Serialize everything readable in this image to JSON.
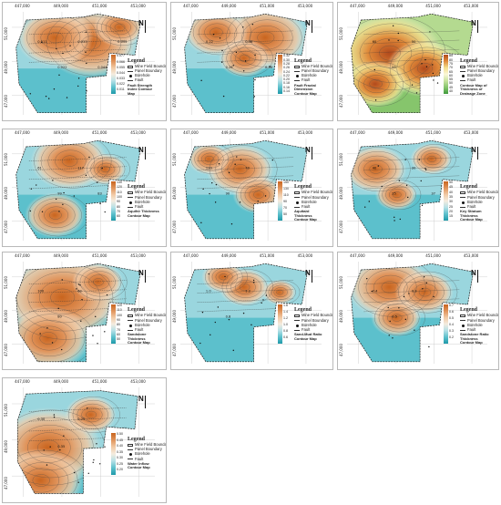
{
  "coord_labels": {
    "x": [
      "447,000",
      "449,000",
      "451,000",
      "453,000"
    ],
    "y": [
      "51,000",
      "49,000",
      "47,000"
    ]
  },
  "north_symbol": "N",
  "legend": {
    "title": "Legend",
    "items": [
      "Mine Field Boundary",
      "Panel Boundary",
      "Borehole",
      "Fault"
    ]
  },
  "palettes": {
    "orange_teal": [
      "#c9651f",
      "#e0935a",
      "#f1c9a4",
      "#f4ecdf",
      "#b5e0e6",
      "#5cc0cc",
      "#1f9aaa"
    ],
    "green_yellow": [
      "#b24a1c",
      "#e08a3a",
      "#f3df8e",
      "#fbf8d8",
      "#c8e3a0",
      "#86c56c",
      "#3f9a3c"
    ]
  },
  "panels": [
    {
      "map_title": "Fault Strength Index Contour Map",
      "palette": "orange_teal",
      "colorbar_ticks": [
        "0.077",
        "0.066",
        "0.055",
        "0.044",
        "0.033",
        "0.022",
        "0.011"
      ],
      "labels": [
        "0.011",
        "0.022",
        "0.033",
        "0.044",
        "0.055"
      ]
    },
    {
      "map_title": "Fault Fractal Dimension Contour Map",
      "palette": "orange_teal",
      "colorbar_ticks": [
        "0.32",
        "0.30",
        "0.28",
        "0.26",
        "0.24",
        "0.22",
        "0.20",
        "0.18",
        "0.16",
        "0.14"
      ],
      "labels": [
        "0.22",
        "0.26",
        "0.46",
        "0.30"
      ]
    },
    {
      "map_title": "Contour Map of Thickness of Drainage Zone",
      "palette": "green_yellow",
      "colorbar_ticks": [
        "85",
        "80",
        "75",
        "70",
        "65",
        "60",
        "55",
        "50",
        "45",
        "40"
      ],
      "labels": [
        "60",
        "55",
        "50"
      ]
    },
    {
      "map_title": "Aquifer Thickness Contour Map",
      "palette": "orange_teal",
      "colorbar_ticks": [
        "130",
        "120",
        "110",
        "100",
        "90",
        "80",
        "70",
        "60"
      ],
      "labels": [
        "61",
        "99",
        "117",
        "83"
      ]
    },
    {
      "map_title": "Aquitard Thickness Contour Map",
      "palette": "orange_teal",
      "colorbar_ticks": [
        "150",
        "130",
        "110",
        "90",
        "70",
        "50"
      ],
      "labels": [
        "110",
        "90",
        "70"
      ]
    },
    {
      "map_title": "Key Stratum Thickness Contour Map",
      "palette": "orange_teal",
      "colorbar_ticks": [
        "50",
        "45",
        "40",
        "35",
        "30",
        "25",
        "20",
        "15"
      ],
      "labels": [
        "40",
        "25",
        "20",
        "37"
      ]
    },
    {
      "map_title": "Sandstone Thickness Contour Map",
      "palette": "orange_teal",
      "colorbar_ticks": [
        "120",
        "110",
        "100",
        "90",
        "80",
        "70",
        "60",
        "50"
      ],
      "labels": [
        "100",
        "80",
        "60"
      ]
    },
    {
      "map_title": "Sand-Mud Ratio Contour Map",
      "palette": "orange_teal",
      "colorbar_ticks": [
        "1.6",
        "1.4",
        "1.2",
        "1.0",
        "0.8",
        "0.6"
      ],
      "labels": [
        "1.0",
        "0.8",
        "1.2"
      ]
    },
    {
      "map_title": "Sandstone Ratio Thickness Contour Map",
      "palette": "orange_teal",
      "colorbar_ticks": [
        "0.7",
        "0.6",
        "0.5",
        "0.4",
        "0.3",
        "0.2"
      ],
      "labels": [
        "0.4",
        "0.5",
        "0.3"
      ]
    },
    {
      "map_title": "Water Inflow Contour Map",
      "palette": "orange_teal",
      "colorbar_ticks": [
        "0.50",
        "0.45",
        "0.40",
        "0.35",
        "0.30",
        "0.25",
        "0.20"
      ],
      "labels": [
        "0.30",
        "0.35",
        "0.25"
      ]
    }
  ]
}
